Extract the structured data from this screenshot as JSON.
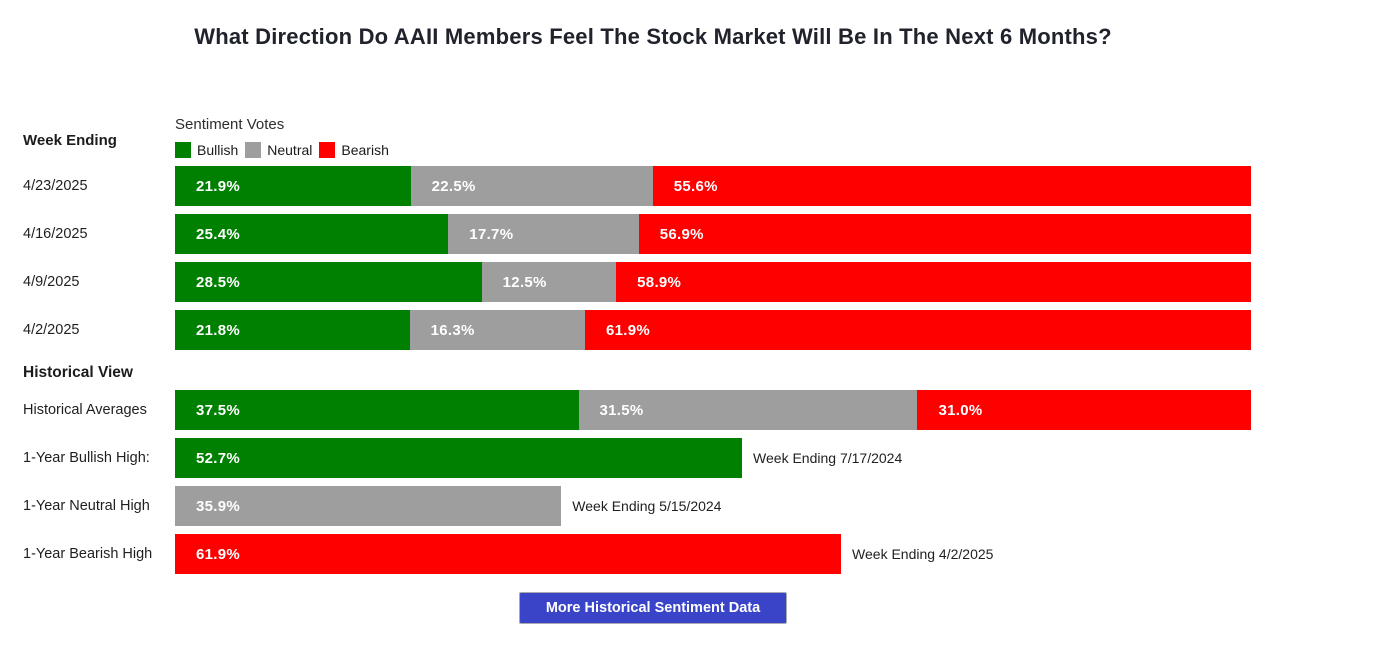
{
  "title": "What Direction Do AAII Members Feel The Stock Market Will Be In The Next 6 Months?",
  "colors": {
    "bullish": "#008000",
    "neutral": "#9e9e9e",
    "bearish": "#fe0000",
    "button_bg": "#3a44c8",
    "button_text": "#ffffff"
  },
  "left_column": {
    "week_ending_label": "Week Ending",
    "historical_view_label": "Historical View"
  },
  "legend": {
    "title": "Sentiment Votes",
    "items": [
      {
        "label": "Bullish"
      },
      {
        "label": "Neutral"
      },
      {
        "label": "Bearish"
      }
    ]
  },
  "chart_data": {
    "type": "bar",
    "orientation": "horizontal",
    "stacked": true,
    "unit": "percent",
    "xlim": [
      0,
      100
    ],
    "series_names": [
      "Bullish",
      "Neutral",
      "Bearish"
    ],
    "weekly": {
      "rows": [
        {
          "week_ending": "4/23/2025",
          "values": {
            "bullish": 21.9,
            "neutral": 22.5,
            "bearish": 55.6
          },
          "labels": {
            "bullish": "21.9%",
            "neutral": "22.5%",
            "bearish": "55.6%"
          }
        },
        {
          "week_ending": "4/16/2025",
          "values": {
            "bullish": 25.4,
            "neutral": 17.7,
            "bearish": 56.9
          },
          "labels": {
            "bullish": "25.4%",
            "neutral": "17.7%",
            "bearish": "56.9%"
          }
        },
        {
          "week_ending": "4/9/2025",
          "values": {
            "bullish": 28.5,
            "neutral": 12.5,
            "bearish": 58.9
          },
          "labels": {
            "bullish": "28.5%",
            "neutral": "12.5%",
            "bearish": "58.9%"
          }
        },
        {
          "week_ending": "4/2/2025",
          "values": {
            "bullish": 21.8,
            "neutral": 16.3,
            "bearish": 61.9
          },
          "labels": {
            "bullish": "21.8%",
            "neutral": "16.3%",
            "bearish": "61.9%"
          }
        }
      ]
    },
    "historical": {
      "averages": {
        "label": "Historical Averages",
        "values": {
          "bullish": 37.5,
          "neutral": 31.5,
          "bearish": 31.0
        },
        "labels": {
          "bullish": "37.5%",
          "neutral": "31.5%",
          "bearish": "31.0%"
        }
      },
      "highs": [
        {
          "label": "1-Year Bullish High:",
          "series": "Bullish",
          "value": 52.7,
          "value_label": "52.7%",
          "annotation": "Week Ending 7/17/2024"
        },
        {
          "label": "1-Year Neutral High",
          "series": "Neutral",
          "value": 35.9,
          "value_label": "35.9%",
          "annotation": "Week Ending 5/15/2024"
        },
        {
          "label": "1-Year Bearish High",
          "series": "Bearish",
          "value": 61.9,
          "value_label": "61.9%",
          "annotation": "Week Ending 4/2/2025"
        }
      ]
    }
  },
  "button": {
    "label": "More Historical Sentiment Data"
  }
}
